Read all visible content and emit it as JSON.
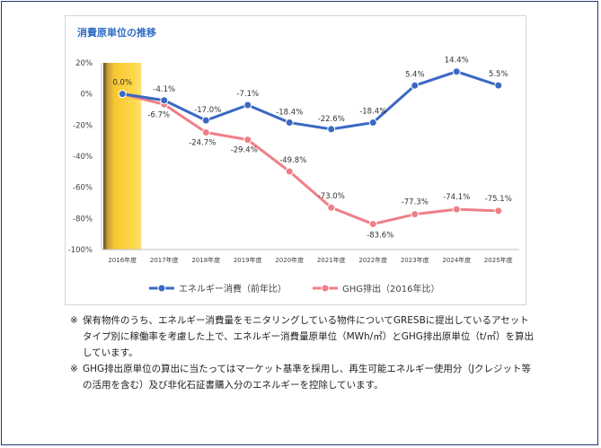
{
  "chart_data": {
    "type": "line",
    "title": "消費原単位の推移",
    "categories": [
      "2016年度",
      "2017年度",
      "2018年度",
      "2019年度",
      "2020年度",
      "2021年度",
      "2022年度",
      "2023年度",
      "2024年度",
      "2025年度"
    ],
    "ylim": [
      -100,
      20
    ],
    "yticks": [
      "20%",
      "0%",
      "-20%",
      "-40%",
      "-60%",
      "-80%",
      "-100%"
    ],
    "grid": false,
    "legend_position": "bottom",
    "highlight_category": "2016年度",
    "series": [
      {
        "name": "エネルギー消費（前年比）",
        "color": "#3a68c4",
        "values": [
          0.0,
          -4.1,
          -17.0,
          -7.1,
          -18.4,
          -22.6,
          -18.4,
          5.4,
          14.4,
          5.5
        ],
        "labels": [
          "0.0%",
          "-4.1%",
          "-17.0%",
          "-7.1%",
          "-18.4%",
          "-22.6%",
          "-18.4%",
          "5.4%",
          "14.4%",
          "5.5%"
        ]
      },
      {
        "name": "GHG排出（2016年比）",
        "color": "#ef7f87",
        "values": [
          0.0,
          -6.7,
          -24.7,
          -29.4,
          -49.8,
          -73.0,
          -83.6,
          -77.3,
          -74.1,
          -75.1
        ],
        "labels": [
          "",
          "-6.7%",
          "-24.7%",
          "-29.4%",
          "-49.8%",
          "-73.0%",
          "-83.6%",
          "-77.3%",
          "-74.1%",
          "-75.1%"
        ]
      }
    ]
  },
  "notes": [
    {
      "mark": "※",
      "text": "保有物件のうち、エネルギー消費量をモニタリングしている物件についてGRESBに提出しているアセットタイプ別に稼働率を考慮した上で、エネルギー消費量原単位（MWh/㎡）とGHG排出原単位（t/㎡）を算出しています。"
    },
    {
      "mark": "※",
      "text": "GHG排出原単位の算出に当たってはマーケット基準を採用し、再生可能エネルギー使用分（Jクレジット等の活用を含む）及び非化石証書購入分のエネルギーを控除しています。"
    }
  ]
}
